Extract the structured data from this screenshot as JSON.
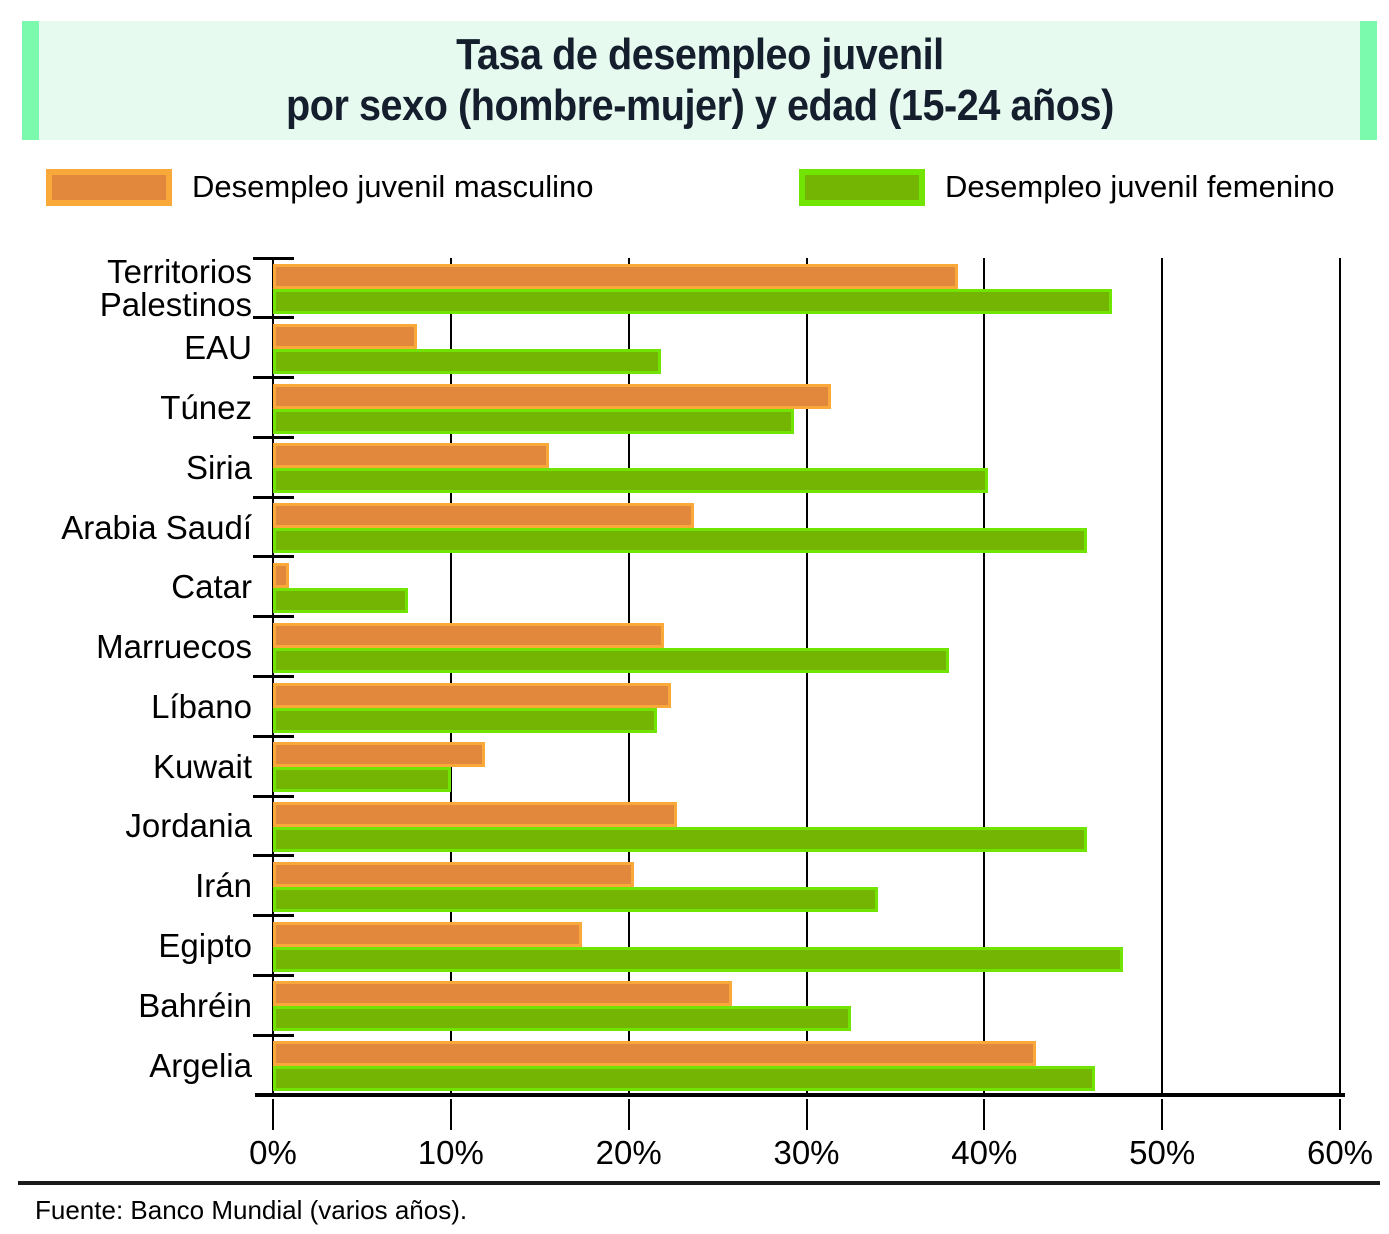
{
  "header": {
    "title_line1": "Tasa de desempleo juvenil",
    "title_line2": "por sexo (hombre-mujer) y edad (15-24 años)"
  },
  "legend": {
    "male_label": "Desempleo juvenil masculino",
    "female_label": "Desempleo juvenil femenino"
  },
  "colors": {
    "male_fill": "#e2883c",
    "male_border": "#f8a93a",
    "female_fill": "#74b504",
    "female_border": "#71e403",
    "header_bg": "#e7faf0",
    "header_accent": "#7bf9ad",
    "title_text": "#141e2c",
    "axis": "#000000"
  },
  "chart_data": {
    "type": "bar",
    "orientation": "horizontal",
    "title": "Tasa de desempleo juvenil por sexo (hombre-mujer) y edad (15-24 años)",
    "categories": [
      "Territorios Palestinos",
      "EAU",
      "Túnez",
      "Siria",
      "Arabia Saudí",
      "Catar",
      "Marruecos",
      "Líbano",
      "Kuwait",
      "Jordania",
      "Irán",
      "Egipto",
      "Bahréin",
      "Argelia"
    ],
    "series": [
      {
        "name": "Desempleo juvenil masculino",
        "color": "#e2883c",
        "values": [
          38.5,
          8.1,
          31.4,
          15.5,
          23.7,
          0.9,
          22.0,
          22.4,
          11.9,
          22.7,
          20.3,
          17.4,
          25.8,
          42.9
        ]
      },
      {
        "name": "Desempleo juvenil femenino",
        "color": "#74b504",
        "values": [
          47.2,
          21.8,
          29.3,
          40.2,
          45.8,
          7.6,
          38.0,
          21.6,
          10.0,
          45.8,
          34.0,
          47.8,
          32.5,
          46.2
        ]
      }
    ],
    "xlim": [
      0,
      60
    ],
    "x_tick_labels": [
      "0%",
      "10%",
      "20%",
      "30%",
      "40%",
      "50%",
      "60%"
    ],
    "grid": true,
    "legend_position": "top"
  },
  "footer": {
    "source": "Fuente: Banco Mundial (varios años)."
  }
}
